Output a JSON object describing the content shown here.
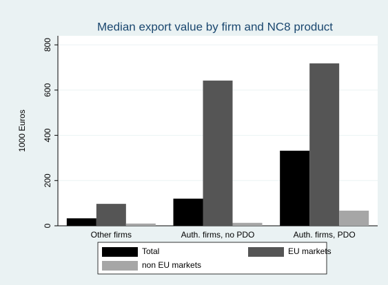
{
  "chart_data": {
    "type": "bar",
    "title": "Median export value by firm and NC8 product",
    "y_label": "1000 Euros",
    "categories": [
      "Other firms",
      "Auth. firms, no PDO",
      "Auth. firms, PDO"
    ],
    "series": [
      {
        "name": "Total",
        "color": "#000000",
        "values": [
          33,
          120,
          332
        ]
      },
      {
        "name": "EU markets",
        "color": "#555555",
        "values": [
          97,
          642,
          718
        ]
      },
      {
        "name": "non EU markets",
        "color": "#a6a6a6",
        "values": [
          10,
          13,
          67
        ]
      }
    ],
    "ylim": [
      0,
      840
    ],
    "yticks": [
      0,
      200,
      400,
      600,
      800
    ],
    "grid": true,
    "legend": "bottom"
  }
}
